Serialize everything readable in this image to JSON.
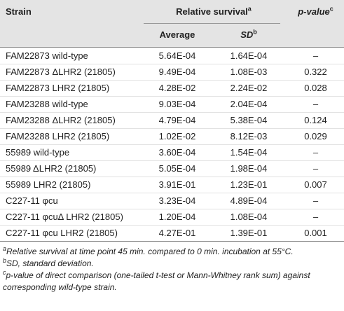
{
  "header": {
    "strain": "Strain",
    "relative_survival": {
      "text": "Relative survival",
      "sup": "a"
    },
    "p_value": {
      "text": "p-value",
      "sup": "c"
    },
    "average": "Average",
    "sd": {
      "text": "SD",
      "sup": "b"
    }
  },
  "table": {
    "rows": [
      [
        "FAM22873 wild-type",
        "5.64E-04",
        "1.64E-04",
        "–"
      ],
      [
        "FAM22873 ΔLHR2 (21805)",
        "9.49E-04",
        "1.08E-03",
        "0.322"
      ],
      [
        "FAM22873 LHR2 (21805)",
        "4.28E-02",
        "2.24E-02",
        "0.028"
      ],
      [
        "FAM23288 wild-type",
        "9.03E-04",
        "2.04E-04",
        "–"
      ],
      [
        "FAM23288 ΔLHR2 (21805)",
        "4.79E-04",
        "5.38E-04",
        "0.124"
      ],
      [
        "FAM23288 LHR2 (21805)",
        "1.02E-02",
        "8.12E-03",
        "0.029"
      ],
      [
        "55989 wild-type",
        "3.60E-04",
        "1.54E-04",
        "–"
      ],
      [
        "55989 ΔLHR2 (21805)",
        "5.05E-04",
        "1.98E-04",
        "–"
      ],
      [
        "55989 LHR2 (21805)",
        "3.91E-01",
        "1.23E-01",
        "0.007"
      ],
      [
        "C227-11 φcu",
        "3.23E-04",
        "4.89E-04",
        "–"
      ],
      [
        "C227-11 φcuΔ LHR2 (21805)",
        "1.20E-04",
        "1.08E-04",
        "–"
      ],
      [
        "C227-11 φcu LHR2 (21805)",
        "4.27E-01",
        "1.39E-01",
        "0.001"
      ]
    ]
  },
  "footnotes": [
    {
      "sup": "a",
      "text": "Relative survival at time point 45 min. compared to 0 min. incubation at 55°C."
    },
    {
      "sup": "b",
      "text": "SD, standard deviation."
    },
    {
      "sup": "c",
      "text": "p-value of direct comparison (one-tailed t-test or Mann-Whitney rank sum) against corresponding wild-type strain."
    }
  ]
}
